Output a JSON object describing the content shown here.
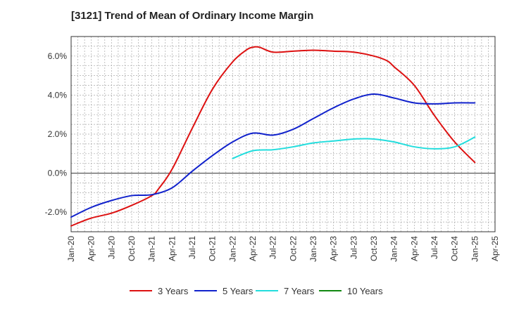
{
  "chart_data": {
    "type": "line",
    "title": "[3121]  Trend of Mean of Ordinary Income Margin",
    "xlabel": "",
    "ylabel": "",
    "x_ticks": [
      "Jan-20",
      "Apr-20",
      "Jul-20",
      "Oct-20",
      "Jan-21",
      "Apr-21",
      "Jul-21",
      "Oct-21",
      "Jan-22",
      "Apr-22",
      "Jul-22",
      "Oct-22",
      "Jan-23",
      "Apr-23",
      "Jul-23",
      "Oct-23",
      "Jan-24",
      "Apr-24",
      "Jul-24",
      "Oct-24",
      "Jan-25",
      "Apr-25"
    ],
    "y_ticks": [
      "-2.0%",
      "0.0%",
      "2.0%",
      "4.0%",
      "6.0%"
    ],
    "ylim": [
      -3.0,
      7.0
    ],
    "y_unit": "%",
    "grid": true,
    "legend_position": "bottom",
    "series": [
      {
        "name": "3 Years",
        "color": "#dd1111",
        "x": [
          "2020-01",
          "2020-04",
          "2020-07",
          "2020-10",
          "2021-01",
          "2021-02",
          "2021-04",
          "2021-07",
          "2021-10",
          "2022-01",
          "2022-03",
          "2022-04",
          "2022-05",
          "2022-07",
          "2022-10",
          "2023-01",
          "2023-04",
          "2023-07",
          "2023-10",
          "2023-12",
          "2024-01",
          "2024-04",
          "2024-07",
          "2024-10",
          "2025-01"
        ],
        "y": [
          -2.7,
          -2.3,
          -2.05,
          -1.65,
          -1.15,
          -0.8,
          0.2,
          2.3,
          4.3,
          5.7,
          6.3,
          6.45,
          6.45,
          6.2,
          6.25,
          6.3,
          6.25,
          6.2,
          6.0,
          5.75,
          5.45,
          4.5,
          2.95,
          1.6,
          0.55
        ]
      },
      {
        "name": "5 Years",
        "color": "#1122cc",
        "x": [
          "2020-01",
          "2020-04",
          "2020-07",
          "2020-10",
          "2021-01",
          "2021-04",
          "2021-07",
          "2021-10",
          "2022-01",
          "2022-04",
          "2022-07",
          "2022-10",
          "2023-01",
          "2023-04",
          "2023-07",
          "2023-10",
          "2024-01",
          "2024-04",
          "2024-07",
          "2024-10",
          "2025-01"
        ],
        "y": [
          -2.25,
          -1.75,
          -1.4,
          -1.15,
          -1.1,
          -0.75,
          0.1,
          0.9,
          1.6,
          2.05,
          1.95,
          2.25,
          2.8,
          3.35,
          3.8,
          4.05,
          3.85,
          3.6,
          3.55,
          3.6,
          3.6
        ]
      },
      {
        "name": "7 Years",
        "color": "#22dddd",
        "x": [
          "2022-01",
          "2022-04",
          "2022-07",
          "2022-10",
          "2023-01",
          "2023-04",
          "2023-07",
          "2023-10",
          "2024-01",
          "2024-04",
          "2024-07",
          "2024-10",
          "2025-01"
        ],
        "y": [
          0.75,
          1.15,
          1.2,
          1.35,
          1.55,
          1.65,
          1.75,
          1.75,
          1.6,
          1.35,
          1.25,
          1.35,
          1.85
        ]
      },
      {
        "name": "10 Years",
        "color": "#118811",
        "x": [],
        "y": []
      }
    ]
  }
}
